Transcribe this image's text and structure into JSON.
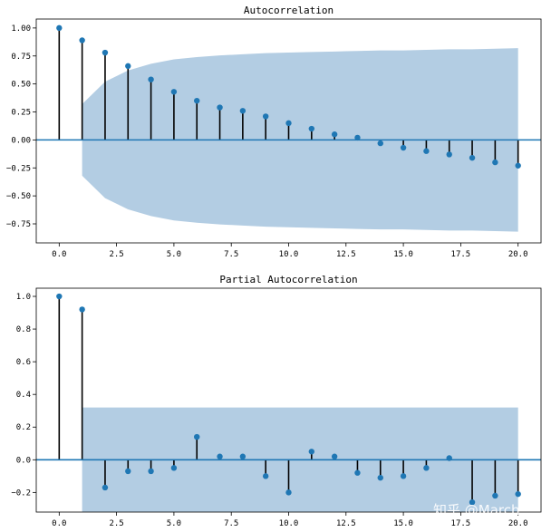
{
  "chart_data": [
    {
      "type": "stem",
      "title": "Autocorrelation",
      "x": [
        0,
        1,
        2,
        3,
        4,
        5,
        6,
        7,
        8,
        9,
        10,
        11,
        12,
        13,
        14,
        15,
        16,
        17,
        18,
        19,
        20
      ],
      "values": [
        1.0,
        0.89,
        0.78,
        0.66,
        0.54,
        0.43,
        0.35,
        0.29,
        0.26,
        0.21,
        0.15,
        0.1,
        0.05,
        0.02,
        -0.03,
        -0.07,
        -0.1,
        -0.13,
        -0.16,
        -0.2,
        -0.23
      ],
      "confidence_band": {
        "x": [
          1,
          2,
          3,
          4,
          5,
          6,
          7,
          8,
          9,
          10,
          11,
          12,
          13,
          14,
          15,
          16,
          17,
          18,
          19,
          20
        ],
        "upper": [
          0.32,
          0.52,
          0.62,
          0.68,
          0.72,
          0.74,
          0.755,
          0.765,
          0.775,
          0.78,
          0.785,
          0.79,
          0.795,
          0.8,
          0.8,
          0.805,
          0.81,
          0.81,
          0.815,
          0.82
        ]
      },
      "xlim": [
        -1,
        21
      ],
      "ylim": [
        -0.92,
        1.08
      ],
      "xticks": [
        0,
        2.5,
        5,
        7.5,
        10,
        12.5,
        15,
        17.5,
        20
      ],
      "xtick_labels": [
        "0.0",
        "2.5",
        "5.0",
        "7.5",
        "10.0",
        "12.5",
        "15.0",
        "17.5",
        "20.0"
      ],
      "yticks": [
        -0.75,
        -0.5,
        -0.25,
        0,
        0.25,
        0.5,
        0.75,
        1.0
      ],
      "ytick_labels": [
        "−0.75",
        "−0.50",
        "−0.25",
        "0.00",
        "0.25",
        "0.50",
        "0.75",
        "1.00"
      ],
      "grid": false,
      "colors": {
        "marker": "#1f77b4",
        "stem": "#000000",
        "band": "#b3cde3",
        "zero_line": "#1f77b4"
      }
    },
    {
      "type": "stem",
      "title": "Partial Autocorrelation",
      "x": [
        0,
        1,
        2,
        3,
        4,
        5,
        6,
        7,
        8,
        9,
        10,
        11,
        12,
        13,
        14,
        15,
        16,
        17,
        18,
        19,
        20
      ],
      "values": [
        1.0,
        0.92,
        -0.17,
        -0.07,
        -0.07,
        -0.05,
        0.14,
        0.02,
        0.02,
        -0.1,
        -0.2,
        0.05,
        0.02,
        -0.08,
        -0.11,
        -0.1,
        -0.05,
        0.01,
        -0.26,
        -0.22,
        -0.21
      ],
      "confidence_band": {
        "x": [
          1,
          20
        ],
        "upper": [
          0.32,
          0.32
        ]
      },
      "xlim": [
        -1,
        21
      ],
      "ylim": [
        -0.32,
        1.05
      ],
      "xticks": [
        0,
        2.5,
        5,
        7.5,
        10,
        12.5,
        15,
        17.5,
        20
      ],
      "xtick_labels": [
        "0.0",
        "2.5",
        "5.0",
        "7.5",
        "10.0",
        "12.5",
        "15.0",
        "17.5",
        "20.0"
      ],
      "yticks": [
        -0.2,
        0,
        0.2,
        0.4,
        0.6,
        0.8,
        1.0
      ],
      "ytick_labels": [
        "−0.2",
        "0.0",
        "0.2",
        "0.4",
        "0.6",
        "0.8",
        "1.0"
      ],
      "grid": false,
      "colors": {
        "marker": "#1f77b4",
        "stem": "#000000",
        "band": "#b3cde3",
        "zero_line": "#1f77b4"
      }
    }
  ],
  "watermark": "知乎 @March"
}
